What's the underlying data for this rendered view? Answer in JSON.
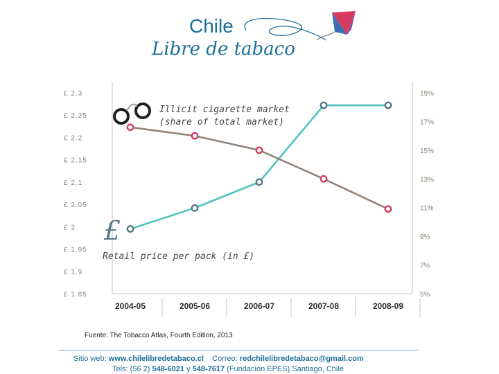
{
  "logo": {
    "line1": "Chile",
    "line2": "Libre de tabaco"
  },
  "chart_data": {
    "type": "line",
    "categories": [
      "2004-05",
      "2005-06",
      "2006-07",
      "2007-08",
      "2008-09"
    ],
    "left_axis": {
      "label": "Retail price per pack (in £)",
      "ticks": [
        "£ 2.3",
        "£ 2.25",
        "£ 2.2",
        "£ 2.15",
        "£ 2.1",
        "£ 2.05",
        "£ 2",
        "£ 1.95",
        "£ 1.9",
        "£ 1.85"
      ],
      "ylim": [
        1.85,
        2.3
      ]
    },
    "right_axis": {
      "label": "Illicit cigarette market (share of total market)",
      "ticks": [
        "19%",
        "17%",
        "15%",
        "13%",
        "11%",
        "9%",
        "7%",
        "5%"
      ],
      "ylim": [
        5,
        19
      ]
    },
    "series": [
      {
        "name": "Retail price per pack (in £)",
        "axis": "left",
        "color": "#4fc2c0",
        "marker_color": "#587584",
        "values": [
          1.995,
          2.042,
          2.1,
          2.272,
          2.272
        ]
      },
      {
        "name": "Illicit cigarette market (share of total market)",
        "axis": "right",
        "color": "#8f837c",
        "marker_color": "#d63a5f",
        "values": [
          16.6,
          16.0,
          15.0,
          13.0,
          10.9
        ]
      }
    ],
    "legend": {
      "illicit_line1": "Illicit cigarette market",
      "illicit_line2": "(share of total market)",
      "price_label": "Retail price per pack (in £)",
      "pound_symbol": "£"
    }
  },
  "source": "Fuente: The Tobacco Atlas, Fourth  Edition, 2013",
  "footer": {
    "web_label": "Sitio web:",
    "web_value": "www.chilelibredetabaco.cl",
    "mail_label": "Correo:",
    "mail_value": "redchilelibredetabaco@gmail.com",
    "tel_label": "Tels: (56 2)",
    "tel1": "548-6021",
    "tel_and": "y",
    "tel2": "548-7617",
    "org": "(Fundación EPES)  Santiago, Chile"
  }
}
